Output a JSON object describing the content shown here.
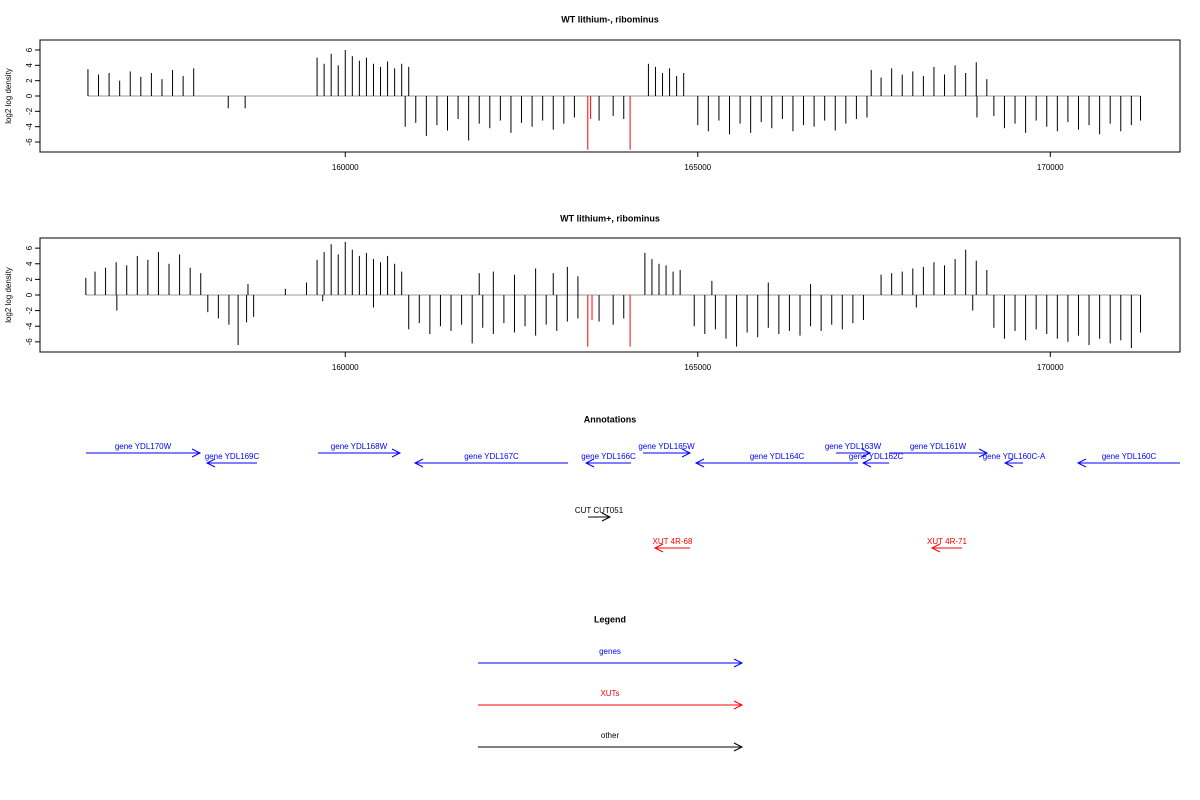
{
  "chart_data": [
    {
      "type": "bar",
      "title": "WT lithium-, ribominus",
      "y_label": "log2 log density",
      "xlim": [
        155670,
        171840
      ],
      "xticks": [
        160000,
        165000,
        170000
      ],
      "ylim": [
        -7.3,
        7.3
      ],
      "yticks": [
        -6,
        -4,
        -2,
        0,
        2,
        4,
        6
      ],
      "series": [
        {
          "color": "#000000",
          "x": [
            156350,
            156500,
            156650,
            156800,
            156950,
            157100,
            157250,
            157400,
            157550,
            157700,
            157850,
            158340,
            158580,
            159600,
            159700,
            159800,
            159900,
            160000,
            160100,
            160200,
            160300,
            160400,
            160500,
            160600,
            160700,
            160800,
            160900,
            160850,
            161000,
            161150,
            161300,
            161450,
            161600,
            161750,
            161900,
            162050,
            162200,
            162350,
            162500,
            162650,
            162800,
            162950,
            163100,
            163250,
            163600,
            163800,
            163950,
            164300,
            164400,
            164500,
            164600,
            164700,
            164800,
            165000,
            165150,
            165300,
            165450,
            165600,
            165750,
            165900,
            166050,
            166200,
            166350,
            166500,
            166650,
            166800,
            166950,
            167100,
            167250,
            167400,
            167460,
            167600,
            167750,
            167900,
            168050,
            168200,
            168350,
            168500,
            168650,
            168800,
            168950,
            169100,
            168960,
            169200,
            169350,
            169500,
            169650,
            169800,
            169950,
            170100,
            170250,
            170400,
            170550,
            170700,
            170850,
            171000,
            171150,
            171280
          ],
          "values": [
            3.5,
            2.8,
            3.0,
            2.0,
            3.2,
            2.5,
            3.0,
            2.2,
            3.4,
            2.6,
            3.6,
            -1.6,
            -1.6,
            5.0,
            4.2,
            5.5,
            4.0,
            6.0,
            5.2,
            4.6,
            5.0,
            4.2,
            3.8,
            4.5,
            3.6,
            4.2,
            3.8,
            -4.0,
            -3.5,
            -5.2,
            -3.8,
            -4.5,
            -3.0,
            -5.8,
            -3.6,
            -4.2,
            -3.2,
            -4.8,
            -3.5,
            -4.0,
            -3.2,
            -4.4,
            -3.6,
            -2.8,
            -3.2,
            -2.6,
            -3.0,
            4.2,
            3.8,
            3.0,
            3.6,
            2.6,
            3.0,
            -3.8,
            -4.6,
            -3.2,
            -5.0,
            -3.6,
            -4.8,
            -3.4,
            -4.2,
            -3.0,
            -4.6,
            -3.8,
            -4.0,
            -3.2,
            -4.5,
            -3.6,
            -3.0,
            -2.8,
            3.4,
            2.4,
            3.6,
            2.8,
            3.2,
            2.6,
            3.8,
            2.8,
            4.0,
            3.0,
            4.4,
            2.2,
            -2.8,
            -2.6,
            -4.2,
            -3.6,
            -4.8,
            -3.2,
            -4.0,
            -4.6,
            -3.4,
            -4.4,
            -3.8,
            -5.0,
            -3.6,
            -4.6,
            -3.8,
            -3.2
          ]
        },
        {
          "color": "#ff0000",
          "x": [
            163440,
            163480,
            164040
          ],
          "values": [
            -7.0,
            -3.0,
            -7.0
          ]
        }
      ]
    },
    {
      "type": "bar",
      "title": "WT lithium+, ribominus",
      "y_label": "log2 log density",
      "xlim": [
        155670,
        171840
      ],
      "xticks": [
        160000,
        165000,
        170000
      ],
      "ylim": [
        -7.3,
        7.3
      ],
      "yticks": [
        -6,
        -4,
        -2,
        0,
        2,
        4,
        6
      ],
      "series": [
        {
          "color": "#000000",
          "x": [
            156320,
            156450,
            156600,
            156750,
            156900,
            157050,
            157200,
            157350,
            157500,
            157650,
            157800,
            157950,
            156760,
            158050,
            158200,
            158350,
            158480,
            158600,
            158700,
            158620,
            159150,
            159450,
            159600,
            159700,
            159800,
            159900,
            160000,
            160100,
            160200,
            160300,
            160400,
            160500,
            160600,
            160700,
            160800,
            159680,
            160400,
            160900,
            161050,
            161200,
            161350,
            161500,
            161650,
            161800,
            161950,
            162100,
            162250,
            162400,
            162550,
            162700,
            162850,
            163000,
            163150,
            163300,
            161900,
            162100,
            162400,
            162700,
            162950,
            163150,
            163300,
            163600,
            163800,
            163950,
            164250,
            164350,
            164450,
            164550,
            164650,
            164750,
            164950,
            165100,
            165250,
            165400,
            165550,
            165700,
            165850,
            166000,
            166150,
            166300,
            166450,
            166600,
            166750,
            166900,
            167050,
            167200,
            167350,
            165200,
            166000,
            166600,
            167600,
            167750,
            167900,
            168050,
            168200,
            168350,
            168500,
            168650,
            168800,
            168950,
            169100,
            168100,
            168900,
            169200,
            169350,
            169500,
            169650,
            169800,
            169950,
            170100,
            170250,
            170400,
            170550,
            170700,
            170850,
            171000,
            171150,
            171280
          ],
          "values": [
            2.2,
            3.0,
            3.5,
            4.2,
            3.8,
            5.0,
            4.5,
            5.5,
            4.0,
            5.2,
            3.5,
            2.8,
            -2.0,
            -2.2,
            -3.0,
            -3.8,
            -6.4,
            -3.5,
            -2.8,
            1.4,
            0.8,
            1.6,
            4.5,
            5.5,
            6.5,
            5.2,
            6.8,
            5.8,
            5.0,
            5.4,
            4.6,
            4.2,
            5.0,
            4.0,
            3.0,
            -0.8,
            -1.6,
            -4.4,
            -3.6,
            -5.0,
            -4.0,
            -4.6,
            -3.8,
            -6.2,
            -4.2,
            -5.0,
            -3.6,
            -4.8,
            -4.0,
            -5.2,
            -3.8,
            -4.6,
            -3.4,
            -3.0,
            2.8,
            3.0,
            2.6,
            3.4,
            2.8,
            3.6,
            2.4,
            -3.4,
            -3.8,
            -3.0,
            5.4,
            4.6,
            4.0,
            3.8,
            3.0,
            3.2,
            -4.0,
            -5.0,
            -4.4,
            -5.6,
            -6.6,
            -4.8,
            -5.4,
            -4.2,
            -5.0,
            -4.6,
            -5.2,
            -4.0,
            -4.6,
            -3.8,
            -4.4,
            -3.6,
            -3.2,
            1.8,
            1.6,
            1.4,
            2.6,
            2.8,
            3.0,
            3.4,
            3.6,
            4.2,
            3.8,
            4.6,
            5.8,
            4.4,
            3.2,
            -1.6,
            -2.0,
            -4.2,
            -5.6,
            -4.6,
            -5.8,
            -4.4,
            -5.0,
            -5.6,
            -6.0,
            -5.2,
            -6.4,
            -5.6,
            -6.2,
            -5.8,
            -6.8,
            -4.8
          ]
        },
        {
          "color": "#ff0000",
          "x": [
            163440,
            163500,
            164040
          ],
          "values": [
            -6.6,
            -3.2,
            -6.6
          ]
        }
      ]
    }
  ],
  "annotations": {
    "title": "Annotations",
    "xlim": [
      155670,
      171840
    ],
    "tracks": [
      {
        "color": "#0000ff",
        "features": [
          {
            "label": "gene YDL170W",
            "start": 156322,
            "end": 157940,
            "strand": "+"
          },
          {
            "label": "gene YDL169C",
            "start": 158039,
            "end": 158748,
            "strand": "-"
          },
          {
            "label": "gene YDL168W",
            "start": 159613,
            "end": 160776,
            "strand": "+"
          },
          {
            "label": "gene YDL167C",
            "start": 160989,
            "end": 163160,
            "strand": "-"
          },
          {
            "label": "gene YDL166C",
            "start": 163415,
            "end": 164053,
            "strand": "-"
          },
          {
            "label": "gene YDL165W",
            "start": 164223,
            "end": 164890,
            "strand": "+"
          },
          {
            "label": "gene YDL164C",
            "start": 164975,
            "end": 167273,
            "strand": "-"
          },
          {
            "label": "gene YDL163W",
            "start": 166961,
            "end": 167443,
            "strand": "+"
          },
          {
            "label": "gene YDL162C",
            "start": 167344,
            "end": 167713,
            "strand": "-"
          },
          {
            "label": "gene YDL161W",
            "start": 167713,
            "end": 169103,
            "strand": "+"
          },
          {
            "label": "gene YDL160C-A",
            "start": 169358,
            "end": 169613,
            "strand": "-"
          },
          {
            "label": "gene YDL160C",
            "start": 170393,
            "end": 171840,
            "strand": "-"
          }
        ]
      },
      {
        "color": "#000000",
        "features": [
          {
            "label": "CUT CUT051",
            "start": 163443,
            "end": 163755,
            "strand": "+"
          }
        ]
      },
      {
        "color": "#ff0000",
        "features": [
          {
            "label": "XUT 4R-68",
            "start": 164393,
            "end": 164890,
            "strand": "-"
          },
          {
            "label": "XUT 4R-71",
            "start": 168322,
            "end": 168748,
            "strand": "-"
          }
        ]
      }
    ]
  },
  "legend": {
    "title": "Legend",
    "items": [
      {
        "label": "genes",
        "color": "#0000ff"
      },
      {
        "label": "XUTs",
        "color": "#ff0000"
      },
      {
        "label": "other",
        "color": "#000000"
      }
    ]
  }
}
